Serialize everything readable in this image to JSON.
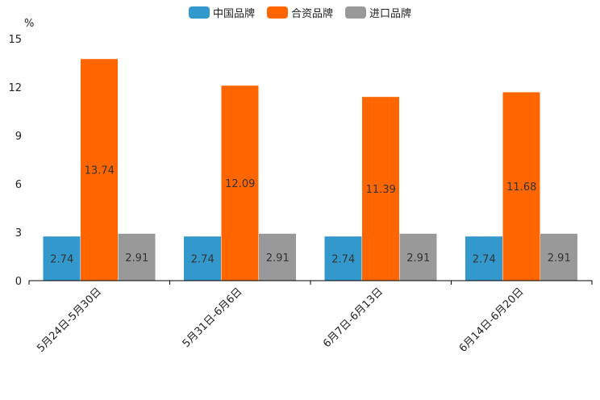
{
  "chart_data": {
    "type": "bar",
    "title": "",
    "unit_label": "%",
    "categories": [
      "5月24日-5月30日",
      "5月31日-6月6日",
      "6月7日-6月13日",
      "6月14日-6月20日"
    ],
    "series": [
      {
        "name": "中国品牌",
        "color": "#3399cc",
        "values": [
          2.74,
          2.74,
          2.74,
          2.74
        ]
      },
      {
        "name": "合资品牌",
        "color": "#ff6600",
        "values": [
          13.74,
          12.09,
          11.39,
          11.68
        ]
      },
      {
        "name": "进口品牌",
        "color": "#999999",
        "values": [
          2.91,
          2.91,
          2.91,
          2.91
        ]
      }
    ],
    "ylim": [
      0,
      15
    ],
    "yticks": [
      0,
      3,
      6,
      9,
      12,
      15
    ],
    "legend_position": "top-center",
    "grid": false
  }
}
